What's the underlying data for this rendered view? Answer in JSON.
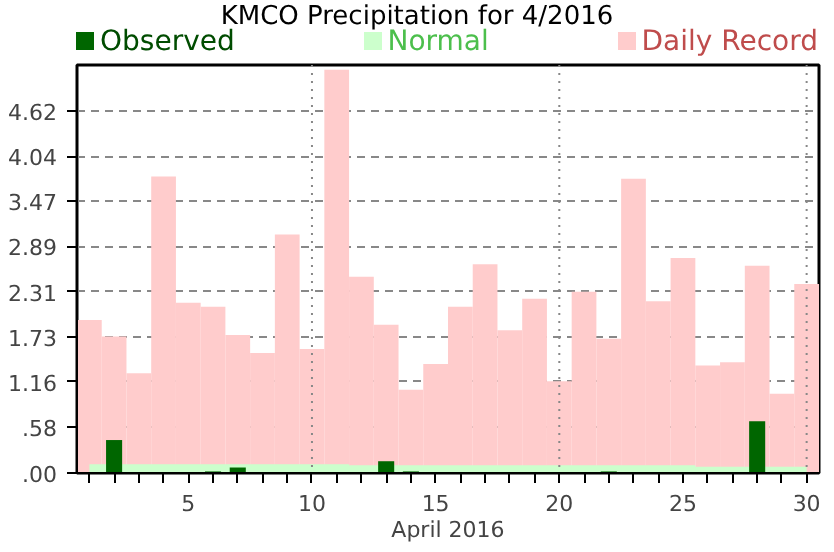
{
  "chart_data": {
    "type": "bar",
    "title": "KMCO Precipitation for 4/2016",
    "xlabel": "April 2016",
    "x": [
      1,
      2,
      3,
      4,
      5,
      6,
      7,
      8,
      9,
      10,
      11,
      12,
      13,
      14,
      15,
      16,
      17,
      18,
      19,
      20,
      21,
      22,
      23,
      24,
      25,
      26,
      27,
      28,
      29,
      30
    ],
    "series": [
      {
        "name": "Daily Record",
        "color": "#ffcccc",
        "values": [
          1.95,
          1.74,
          1.27,
          3.78,
          2.17,
          2.12,
          1.76,
          1.53,
          3.04,
          1.58,
          5.14,
          2.5,
          1.89,
          1.06,
          1.39,
          2.12,
          2.66,
          1.82,
          2.22,
          1.17,
          2.31,
          1.71,
          3.75,
          2.19,
          2.74,
          1.37,
          1.41,
          2.64,
          1.01,
          2.41
        ]
      },
      {
        "name": "Normal",
        "type": "area",
        "color": "#ccffcc",
        "values": [
          0.11,
          null,
          0.11,
          0.11,
          0.11,
          0.11,
          0.11,
          0.11,
          0.11,
          0.11,
          0.11,
          0.1,
          0.1,
          0.1,
          0.1,
          0.1,
          0.1,
          0.1,
          0.1,
          0.1,
          0.1,
          0.1,
          0.1,
          0.1,
          0.1,
          0.08,
          0.08,
          null,
          0.08,
          0.08
        ]
      },
      {
        "name": "Observed",
        "color": "#006600",
        "values": [
          0,
          0.42,
          0,
          0,
          0,
          0.02,
          0.07,
          0,
          0,
          0,
          0,
          0,
          0.15,
          0.02,
          0,
          0,
          0,
          0,
          0,
          0,
          0,
          0.02,
          0,
          0,
          0,
          0,
          0,
          0.66,
          0,
          0
        ]
      }
    ],
    "xlim": [
      0.5,
      30.5
    ],
    "xticks": [
      {
        "value": 1,
        "label": null
      },
      {
        "value": 2,
        "label": null
      },
      {
        "value": 3,
        "label": null
      },
      {
        "value": 4,
        "label": null
      },
      5,
      {
        "value": 6,
        "label": null
      },
      {
        "value": 7,
        "label": null
      },
      {
        "value": 8,
        "label": null
      },
      {
        "value": 9,
        "label": null
      },
      10,
      {
        "value": 11,
        "label": null
      },
      {
        "value": 12,
        "label": null
      },
      {
        "value": 13,
        "label": null
      },
      {
        "value": 14,
        "label": null
      },
      15,
      {
        "value": 16,
        "label": null
      },
      {
        "value": 17,
        "label": null
      },
      {
        "value": 18,
        "label": null
      },
      {
        "value": 19,
        "label": null
      },
      20,
      {
        "value": 21,
        "label": null
      },
      {
        "value": 22,
        "label": null
      },
      {
        "value": 23,
        "label": null
      },
      {
        "value": 24,
        "label": null
      },
      25,
      {
        "value": 26,
        "label": null
      },
      {
        "value": 27,
        "label": null
      },
      {
        "value": 28,
        "label": null
      },
      {
        "value": 29,
        "label": null
      },
      30
    ],
    "ylim": [
      0,
      5.2
    ],
    "yticks": [
      {
        "value": 0,
        "label": ".00"
      },
      {
        "value": 0.58,
        "label": ".58"
      },
      {
        "value": 1.16,
        "label": "1.16"
      },
      {
        "value": 1.73,
        "label": "1.73"
      },
      {
        "value": 2.31,
        "label": "2.31"
      },
      {
        "value": 2.89,
        "label": "2.89"
      },
      {
        "value": 3.47,
        "label": "3.47"
      },
      {
        "value": 4.04,
        "label": "4.04"
      },
      {
        "value": 4.62,
        "label": "4.62"
      }
    ],
    "grid": "y",
    "ref_lines": [
      {
        "axis": "x",
        "value": 10,
        "color": "#888888",
        "line_style": "dotted"
      },
      {
        "axis": "x",
        "value": 20,
        "color": "#888888",
        "line_style": "dotted"
      },
      {
        "axis": "x",
        "value": 30,
        "color": "#888888",
        "line_style": "dotted"
      }
    ],
    "legend": "top"
  }
}
